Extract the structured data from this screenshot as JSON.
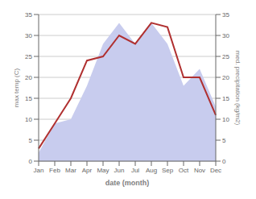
{
  "chart_data": {
    "type": "line",
    "xlabel": "date (month)",
    "ylabel": "max temp (C)",
    "y2label": "med. precipitation (kg/m2)",
    "categories": [
      "Jan",
      "Feb",
      "Mar",
      "Apr",
      "May",
      "Jun",
      "Jul",
      "Aug",
      "Sep",
      "Oct",
      "Nov",
      "Dec"
    ],
    "series": [
      {
        "type": "area",
        "axis": "y2",
        "color": "#c8ccee",
        "values": [
          2,
          9,
          10,
          18,
          28,
          33,
          28,
          33,
          28,
          18,
          22,
          13
        ]
      },
      {
        "type": "line",
        "color": "#b03030",
        "values": [
          3,
          9,
          15,
          24,
          25,
          30,
          28,
          33,
          32,
          20,
          20,
          11
        ]
      }
    ],
    "ylim": [
      0,
      35
    ],
    "yticks": [
      0,
      5,
      10,
      15,
      20,
      25,
      30,
      35
    ],
    "y2lim": [
      0,
      35
    ],
    "y2ticks": [
      0,
      5,
      10,
      15,
      20,
      25,
      30,
      35
    ],
    "grid": true
  }
}
